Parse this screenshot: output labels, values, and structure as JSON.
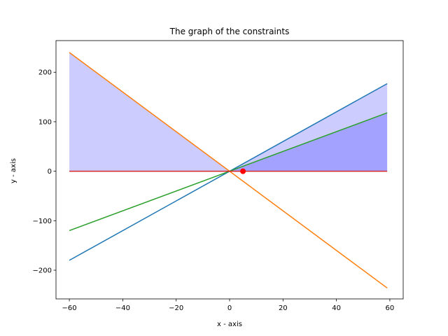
{
  "chart_data": {
    "type": "line",
    "title": "The graph of the constraints",
    "xlabel": "x - axis",
    "ylabel": "y - axis",
    "xlim": [
      -65,
      65
    ],
    "ylim": [
      -258,
      264
    ],
    "grid": false,
    "x_ticks": [
      -60,
      -40,
      -20,
      0,
      20,
      40,
      60
    ],
    "y_ticks": [
      -200,
      -100,
      0,
      100,
      200
    ],
    "x_tick_labels": [
      "−60",
      "−40",
      "−20",
      "0",
      "20",
      "40",
      "60"
    ],
    "y_tick_labels": [
      "−200",
      "−100",
      "0",
      "100",
      "200"
    ],
    "series": [
      {
        "color": "#1f77b4",
        "x": [
          -60,
          59
        ],
        "y": [
          -180,
          177
        ]
      },
      {
        "color": "#ff7f0e",
        "x": [
          -60,
          59
        ],
        "y": [
          240,
          -236
        ]
      },
      {
        "color": "#2ca02c",
        "x": [
          -60,
          59
        ],
        "y": [
          -120,
          118
        ]
      },
      {
        "color": "#d62728",
        "x": [
          -60,
          59
        ],
        "y": [
          0,
          0
        ]
      }
    ],
    "fills": [
      {
        "color": "#0000ff",
        "opacity": 0.2,
        "x": [
          -60,
          0
        ],
        "y1": [
          240,
          0
        ],
        "y2": [
          0,
          0
        ]
      },
      {
        "color": "#0000ff",
        "opacity": 0.2,
        "x": [
          0,
          59
        ],
        "y1": [
          0,
          177
        ],
        "y2": [
          0,
          0
        ]
      },
      {
        "color": "#0000ff",
        "opacity": 0.2,
        "x": [
          0,
          59
        ],
        "y1": [
          0,
          118
        ],
        "y2": [
          0,
          0
        ]
      }
    ],
    "points": [
      {
        "x": 5,
        "y": 0,
        "color": "#ff0000"
      }
    ]
  }
}
